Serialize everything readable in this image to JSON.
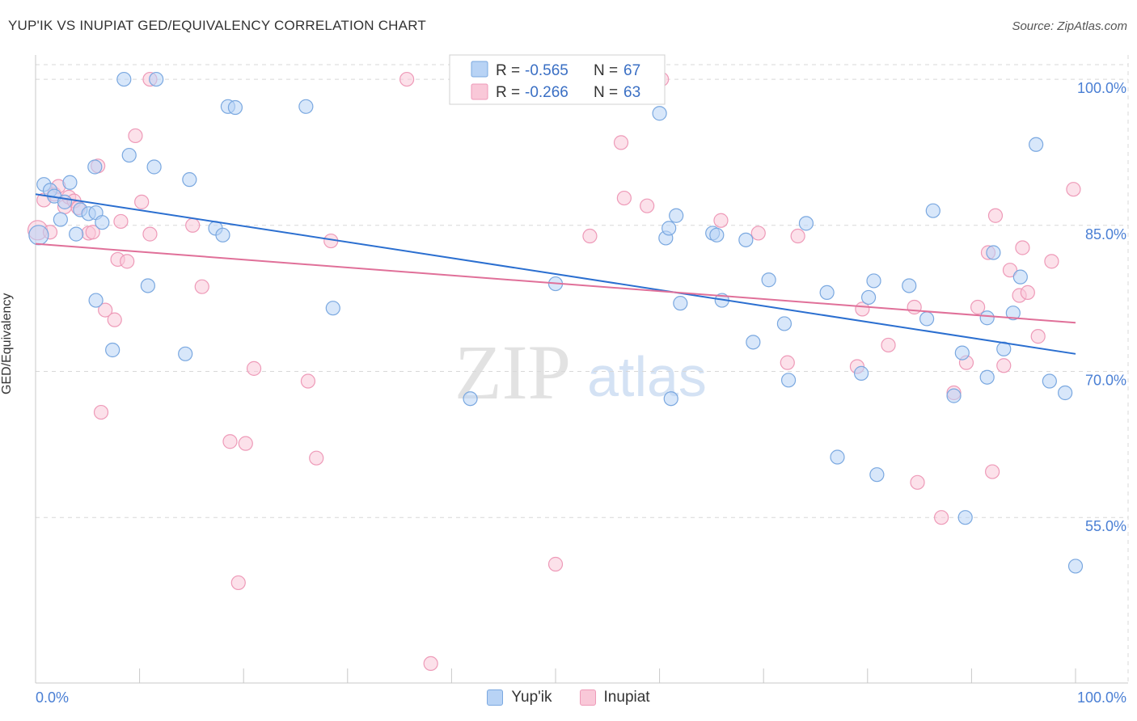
{
  "title": "YUP'IK VS INUPIAT GED/EQUIVALENCY CORRELATION CHART",
  "source": "Source: ZipAtlas.com",
  "watermark": {
    "zip": "ZIP",
    "atlas": "atlas"
  },
  "colors": {
    "blue_fill": "#b8d3f5",
    "blue_stroke": "#7aa8e0",
    "blue_line": "#2b6fd0",
    "pink_fill": "#f9c8d8",
    "pink_stroke": "#ee9ab8",
    "pink_line": "#e07099",
    "tick_text": "#4a7fd4",
    "grid": "#d8d8d8"
  },
  "chart_data": {
    "type": "scatter",
    "title": "YUP'IK VS INUPIAT GED/EQUIVALENCY CORRELATION CHART",
    "xlabel": "",
    "ylabel": "GED/Equivalency",
    "xlim": [
      0,
      100
    ],
    "ylim": [
      38,
      101.5
    ],
    "x_tick_labels": [
      "0.0%",
      "100.0%"
    ],
    "y_ticks": [
      55,
      70,
      85,
      100
    ],
    "y_tick_labels": [
      "55.0%",
      "70.0%",
      "85.0%",
      "100.0%"
    ],
    "grid": true,
    "legend_top": [
      {
        "series": "Yup'ik",
        "r_label": "R =",
        "r_value": "-0.565",
        "n_label": "N =",
        "n_value": "67"
      },
      {
        "series": "Inupiat",
        "r_label": "R =",
        "r_value": "-0.266",
        "n_label": "N =",
        "n_value": "63"
      }
    ],
    "series": [
      {
        "name": "Yup'ik",
        "trend": {
          "x": [
            0,
            100
          ],
          "y": [
            88.2,
            71.8
          ]
        },
        "points": [
          [
            0.3,
            84.0
          ],
          [
            0.8,
            89.2
          ],
          [
            1.4,
            88.6
          ],
          [
            1.8,
            88.0
          ],
          [
            2.4,
            85.6
          ],
          [
            2.8,
            87.4
          ],
          [
            3.3,
            89.4
          ],
          [
            3.9,
            84.1
          ],
          [
            4.3,
            86.6
          ],
          [
            5.1,
            86.2
          ],
          [
            5.7,
            91.0
          ],
          [
            5.8,
            86.3
          ],
          [
            5.8,
            77.3
          ],
          [
            6.4,
            85.3
          ],
          [
            7.4,
            72.2
          ],
          [
            8.5,
            100.0
          ],
          [
            9.0,
            92.2
          ],
          [
            10.8,
            78.8
          ],
          [
            11.6,
            100.0
          ],
          [
            11.4,
            91.0
          ],
          [
            14.8,
            89.7
          ],
          [
            14.4,
            71.8
          ],
          [
            17.3,
            84.7
          ],
          [
            18.0,
            84.0
          ],
          [
            18.5,
            97.2
          ],
          [
            19.2,
            97.1
          ],
          [
            26.0,
            97.2
          ],
          [
            28.6,
            76.5
          ],
          [
            41.8,
            67.2
          ],
          [
            50.0,
            79.0
          ],
          [
            61.1,
            67.2
          ],
          [
            62.0,
            77.0
          ],
          [
            60.0,
            96.5
          ],
          [
            60.6,
            83.7
          ],
          [
            60.9,
            84.7
          ],
          [
            61.6,
            86.0
          ],
          [
            65.1,
            84.2
          ],
          [
            65.5,
            84.0
          ],
          [
            66.0,
            77.3
          ],
          [
            68.3,
            83.5
          ],
          [
            69.0,
            73.0
          ],
          [
            70.5,
            79.4
          ],
          [
            72.0,
            74.9
          ],
          [
            72.4,
            69.1
          ],
          [
            74.1,
            85.2
          ],
          [
            76.1,
            78.1
          ],
          [
            77.1,
            61.2
          ],
          [
            79.4,
            69.8
          ],
          [
            80.1,
            77.6
          ],
          [
            80.6,
            79.3
          ],
          [
            80.9,
            59.4
          ],
          [
            84.0,
            78.8
          ],
          [
            85.7,
            75.4
          ],
          [
            86.3,
            86.5
          ],
          [
            88.3,
            67.5
          ],
          [
            89.4,
            55.0
          ],
          [
            89.1,
            71.9
          ],
          [
            91.5,
            69.4
          ],
          [
            91.5,
            75.5
          ],
          [
            92.1,
            82.2
          ],
          [
            93.1,
            72.3
          ],
          [
            94.0,
            76.0
          ],
          [
            94.7,
            79.7
          ],
          [
            96.2,
            93.3
          ],
          [
            97.5,
            69.0
          ],
          [
            99.0,
            67.8
          ],
          [
            100.0,
            50.0
          ]
        ]
      },
      {
        "name": "Inupiat",
        "trend": {
          "x": [
            0,
            100
          ],
          "y": [
            83.1,
            75.0
          ]
        },
        "points": [
          [
            0.2,
            84.5
          ],
          [
            0.8,
            87.6
          ],
          [
            1.4,
            84.3
          ],
          [
            1.8,
            88.2
          ],
          [
            2.2,
            89.0
          ],
          [
            2.8,
            86.9
          ],
          [
            3.2,
            87.9
          ],
          [
            3.7,
            87.5
          ],
          [
            4.1,
            86.8
          ],
          [
            5.1,
            84.2
          ],
          [
            5.5,
            84.3
          ],
          [
            6.0,
            91.1
          ],
          [
            6.3,
            65.8
          ],
          [
            6.7,
            76.3
          ],
          [
            7.6,
            75.3
          ],
          [
            7.9,
            81.5
          ],
          [
            8.2,
            85.4
          ],
          [
            8.8,
            81.3
          ],
          [
            9.6,
            94.2
          ],
          [
            10.2,
            87.4
          ],
          [
            11.0,
            84.1
          ],
          [
            11.0,
            100.0
          ],
          [
            15.1,
            85.0
          ],
          [
            16.0,
            78.7
          ],
          [
            18.7,
            62.8
          ],
          [
            19.5,
            48.3
          ],
          [
            20.2,
            62.6
          ],
          [
            21.0,
            70.3
          ],
          [
            26.2,
            69.0
          ],
          [
            27.0,
            61.1
          ],
          [
            28.4,
            83.4
          ],
          [
            35.7,
            100.0
          ],
          [
            50.0,
            50.2
          ],
          [
            53.3,
            83.9
          ],
          [
            56.3,
            93.5
          ],
          [
            56.6,
            87.8
          ],
          [
            58.8,
            87.0
          ],
          [
            60.2,
            100.0
          ],
          [
            65.9,
            85.5
          ],
          [
            69.5,
            84.2
          ],
          [
            72.3,
            70.9
          ],
          [
            73.3,
            83.9
          ],
          [
            79.0,
            70.5
          ],
          [
            79.5,
            76.4
          ],
          [
            82.0,
            72.7
          ],
          [
            84.5,
            76.6
          ],
          [
            84.8,
            58.6
          ],
          [
            87.1,
            55.0
          ],
          [
            88.3,
            67.8
          ],
          [
            89.5,
            70.9
          ],
          [
            90.6,
            76.6
          ],
          [
            91.6,
            82.2
          ],
          [
            92.0,
            59.7
          ],
          [
            92.3,
            86.0
          ],
          [
            93.1,
            70.6
          ],
          [
            93.7,
            80.4
          ],
          [
            94.6,
            77.8
          ],
          [
            94.9,
            82.7
          ],
          [
            95.4,
            78.1
          ],
          [
            96.4,
            73.6
          ],
          [
            97.7,
            81.3
          ],
          [
            99.8,
            88.7
          ],
          [
            38.0,
            40.0
          ]
        ]
      }
    ]
  }
}
